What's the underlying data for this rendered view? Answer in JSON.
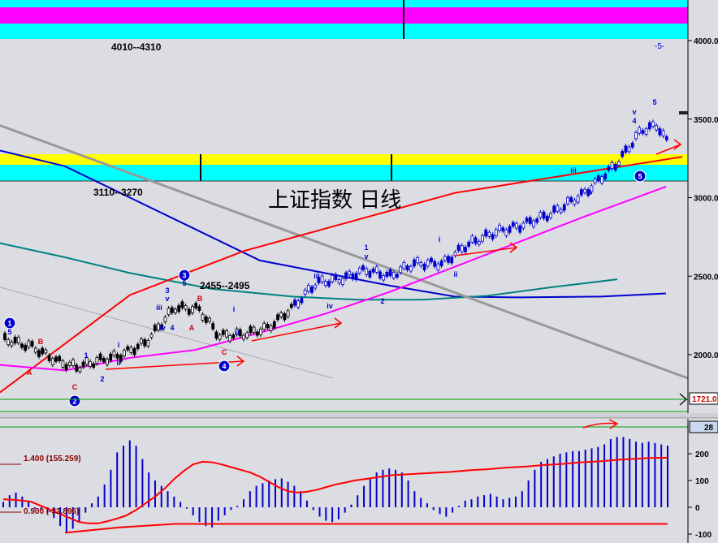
{
  "chart_data": [
    {
      "type": "candlestick",
      "title": "上证指数 日线",
      "ylim": [
        1700,
        4180
      ],
      "y_ticks": [
        {
          "value": 4000,
          "label": "4000.0"
        },
        {
          "value": 3500,
          "label": "3500.0"
        },
        {
          "value": 3000,
          "label": "3000.0"
        },
        {
          "value": 2500,
          "label": "2500.0"
        },
        {
          "value": 2000,
          "label": "2000.0"
        }
      ],
      "last_price_label": "1721.0",
      "target_zones": [
        {
          "label": "4010--4310",
          "low": 4010,
          "high": 4310,
          "colors": [
            "#00ffff",
            "#ff00ff",
            "#00ffff"
          ]
        },
        {
          "label": "3110--3270",
          "low": 3110,
          "high": 3270,
          "colors": [
            "#ffff00",
            "#00ffff"
          ]
        }
      ],
      "level_annotation": "2455--2495",
      "corner_label": "-5-",
      "series": [
        {
          "kind": "moving-average",
          "color": "#0000cc",
          "values": [
            3300,
            3200,
            3000,
            2800,
            2600,
            2520,
            2440,
            2370,
            2365,
            2370,
            2390
          ]
        },
        {
          "kind": "moving-average",
          "color": "#008080",
          "values": [
            2710,
            2620,
            2520,
            2420,
            2370,
            2350,
            2350,
            2375,
            2430,
            2480
          ]
        },
        {
          "kind": "trendline",
          "color": "#999999",
          "values": [
            3460,
            1850
          ]
        },
        {
          "kind": "trendline",
          "color": "#aaaaaa",
          "values": [
            2430,
            1850
          ]
        },
        {
          "kind": "support",
          "color": "#ff0000",
          "values": [
            1760,
            2380,
            2660,
            3030,
            3260
          ]
        },
        {
          "kind": "moving-average",
          "color": "#ff00ff",
          "values": [
            1935,
            1900,
            1980,
            2030,
            2140,
            2260,
            2400,
            2560,
            2720,
            2880,
            3070
          ]
        }
      ],
      "wave_labels": [
        {
          "text": "1",
          "color": "#0000cc",
          "circled": true
        },
        {
          "text": "5",
          "color": "#0000cc"
        },
        {
          "text": "B",
          "color": "#cc0000"
        },
        {
          "text": "A",
          "color": "#cc0000"
        },
        {
          "text": "C",
          "color": "#cc0000"
        },
        {
          "text": "2",
          "color": "#0000cc",
          "circled": true
        },
        {
          "text": "1",
          "color": "#0000cc"
        },
        {
          "text": "2",
          "color": "#0000cc"
        },
        {
          "text": "i",
          "color": "#0000cc"
        },
        {
          "text": "ii",
          "color": "#0000cc"
        },
        {
          "text": "3",
          "color": "#0000cc"
        },
        {
          "text": "v",
          "color": "#0000cc"
        },
        {
          "text": "iii",
          "color": "#0000cc"
        },
        {
          "text": "iv",
          "color": "#0000cc"
        },
        {
          "text": "4",
          "color": "#0000cc"
        },
        {
          "text": "3",
          "color": "#0000cc",
          "circled": true
        },
        {
          "text": "5",
          "color": "#0000cc"
        },
        {
          "text": "B",
          "color": "#cc0000"
        },
        {
          "text": "A",
          "color": "#cc0000"
        },
        {
          "text": "C",
          "color": "#cc0000"
        },
        {
          "text": "4",
          "color": "#0000cc",
          "circled": true
        },
        {
          "text": "i",
          "color": "#0000cc"
        },
        {
          "text": "ii",
          "color": "#0000cc"
        },
        {
          "text": "iii",
          "color": "#0000cc"
        },
        {
          "text": "iv",
          "color": "#0000cc"
        },
        {
          "text": "1",
          "color": "#0000cc"
        },
        {
          "text": "v",
          "color": "#0000cc"
        },
        {
          "text": "2",
          "color": "#0000cc"
        },
        {
          "text": "i",
          "color": "#0000cc"
        },
        {
          "text": "ii",
          "color": "#0000cc"
        },
        {
          "text": "iii",
          "color": "#0000cc"
        },
        {
          "text": "3",
          "color": "#0000cc"
        },
        {
          "text": "v",
          "color": "#0000cc"
        },
        {
          "text": "4",
          "color": "#0000cc"
        },
        {
          "text": "5",
          "color": "#0000cc",
          "circled": true
        },
        {
          "text": "5",
          "color": "#0000cc"
        }
      ]
    },
    {
      "type": "bar",
      "ylim": [
        -110,
        300
      ],
      "y_ticks": [
        {
          "value": 200,
          "label": "200"
        },
        {
          "value": 100,
          "label": "100"
        },
        {
          "value": 0,
          "label": "0"
        },
        {
          "value": -100,
          "label": "-100"
        }
      ],
      "current_value_label": "28",
      "bands": [
        {
          "label": "1.400 (155.259)",
          "color": "#880000"
        },
        {
          "label": "0.900 (-32.896)",
          "color": "#880000"
        }
      ],
      "values": [
        20,
        45,
        55,
        40,
        25,
        -5,
        -10,
        -20,
        -40,
        -70,
        -95,
        -80,
        -55,
        -20,
        15,
        40,
        85,
        140,
        205,
        230,
        250,
        230,
        180,
        130,
        100,
        80,
        60,
        40,
        20,
        -5,
        -30,
        -55,
        -70,
        -75,
        -50,
        -30,
        -10,
        5,
        30,
        60,
        80,
        90,
        100,
        105,
        108,
        95,
        80,
        60,
        25,
        -10,
        -35,
        -50,
        -55,
        -45,
        -20,
        10,
        45,
        80,
        110,
        130,
        140,
        145,
        140,
        130,
        100,
        60,
        35,
        15,
        -10,
        -25,
        -35,
        -20,
        5,
        25,
        30,
        40,
        45,
        50,
        40,
        30,
        35,
        40,
        60,
        100,
        140,
        170,
        180,
        190,
        200,
        205,
        210,
        210,
        215,
        220,
        225,
        235,
        255,
        262,
        262,
        255,
        245,
        240,
        245,
        240,
        235,
        230
      ],
      "signal_upper": [
        30,
        28,
        25,
        20,
        5,
        -10,
        -25,
        -40,
        -55,
        -60,
        -60,
        -52,
        -42,
        -30,
        -10,
        15,
        40,
        70,
        105,
        135,
        160,
        170,
        168,
        160,
        150,
        140,
        130,
        115,
        95,
        75,
        60,
        55,
        58,
        65,
        75,
        85,
        92,
        100,
        105,
        110,
        115,
        120,
        122,
        124,
        126,
        128,
        130,
        132,
        135,
        138,
        140,
        142,
        145,
        148,
        150,
        152,
        155,
        158,
        160,
        162,
        165,
        168,
        170,
        172,
        175,
        178,
        180,
        182,
        184,
        185,
        185
      ],
      "signal_lower": [
        -95,
        -75,
        -62,
        -62,
        -62,
        -62,
        -62,
        -62,
        -62,
        -62,
        -62,
        -62
      ]
    }
  ]
}
